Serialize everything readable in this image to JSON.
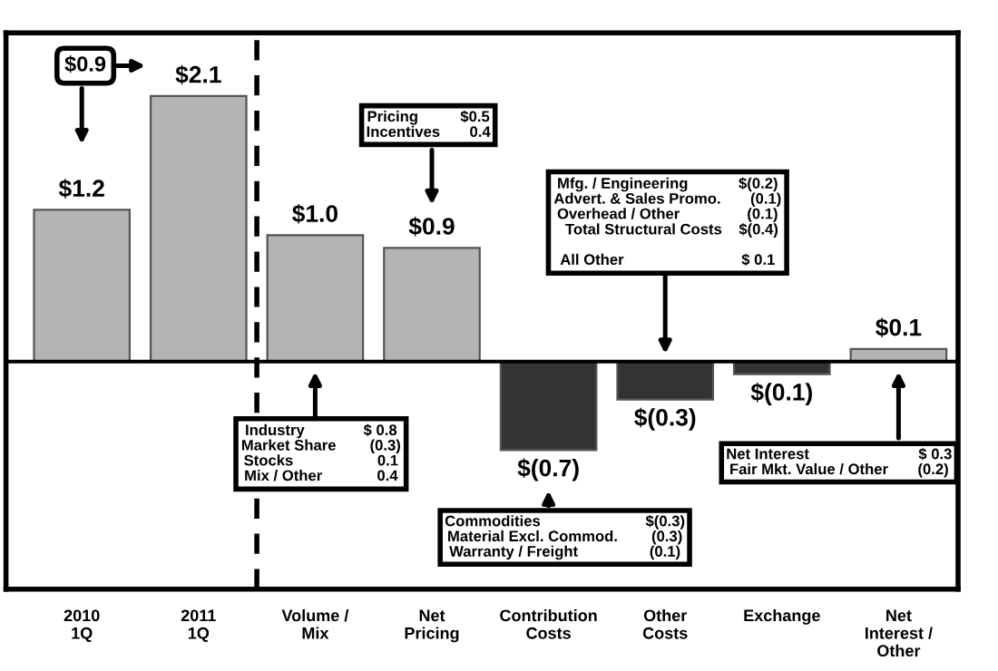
{
  "chart_data": {
    "type": "bar",
    "categories": [
      "2010\n1Q",
      "2011\n1Q",
      "Volume /\nMix",
      "Net\nPricing",
      "Contribution\nCosts",
      "Other\nCosts",
      "Exchange",
      "Net\nInterest /\nOther"
    ],
    "values": [
      1.2,
      2.1,
      1.0,
      0.9,
      -0.7,
      -0.3,
      -0.1,
      0.1
    ],
    "colors": [
      "#b4b4b4",
      "#b4b4b4",
      "#b4b4b4",
      "#b4b4b4",
      "#333333",
      "#333333",
      "#333333",
      "#b4b4b4"
    ],
    "value_labels": [
      "$1.2",
      "$2.1",
      "$1.0",
      "$0.9",
      "$(0.7)",
      "$(0.3)",
      "$(0.1)",
      "$0.1"
    ],
    "ylim": [
      -1.8,
      2.6
    ],
    "annotations": [
      "$0.9",
      "Pricing          $0.5\nIncentives       0.4",
      "Mfg. / Engineering            $(0.2)\nAdvert. & Sales Promo.       (0.1)\nOverhead / Other                (0.1)\n  Total Structural Costs    $(0.4)\n\nAll Other                            $ 0.1",
      "Industry              $ 0.8\nMarket Share        (0.3)\nStocks                    0.1\nMix / Other             0.4",
      "Commodities                         $(0.3)\nMaterial Excl. Commod.        (0.3)\nWarranty / Freight                 (0.1)",
      "Net Interest                          $ 0.3\nFair Mkt. Value / Other       (0.2)"
    ],
    "grid": false
  }
}
